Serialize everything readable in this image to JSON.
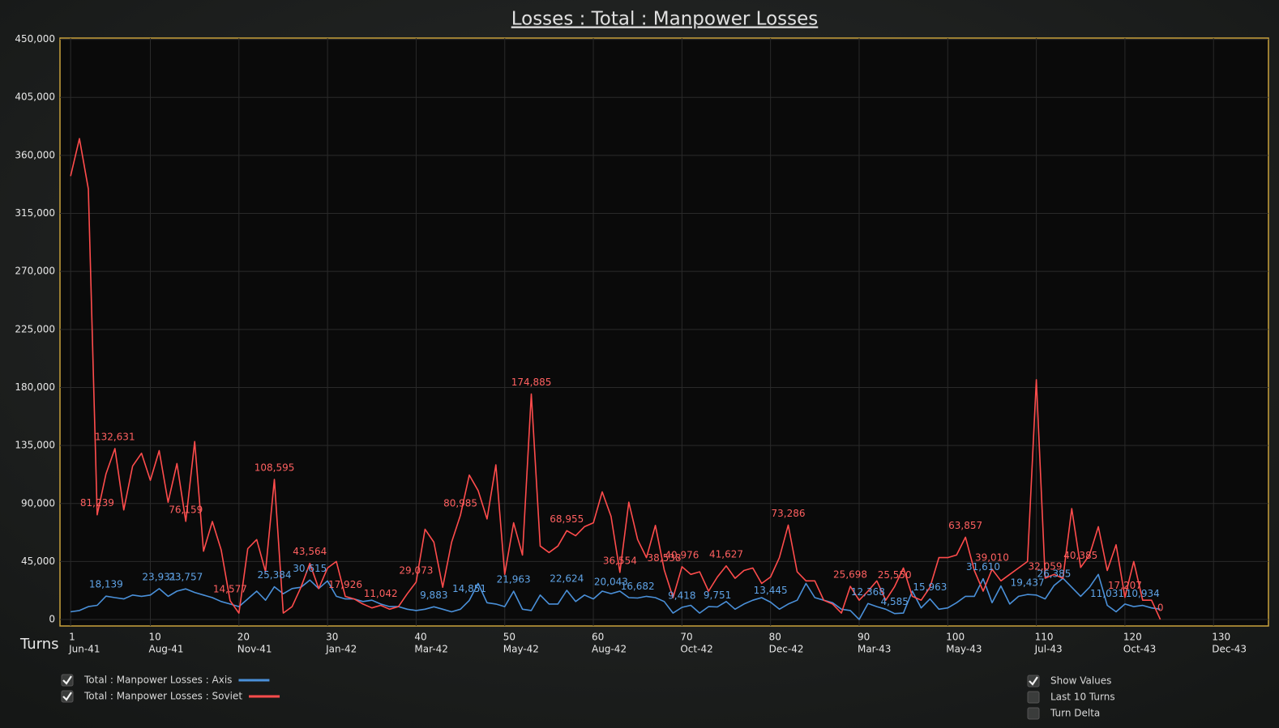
{
  "chart_data": {
    "type": "line",
    "title": "Losses : Total : Manpower Losses",
    "x_label": "Turns",
    "x": [
      1,
      2,
      3,
      4,
      5,
      6,
      7,
      8,
      9,
      10,
      11,
      12,
      13,
      14,
      15,
      16,
      17,
      18,
      19,
      20,
      21,
      22,
      23,
      24,
      25,
      26,
      27,
      28,
      29,
      30,
      31,
      32,
      33,
      34,
      35,
      36,
      37,
      38,
      39,
      40,
      41,
      42,
      43,
      44,
      45,
      46,
      47,
      48,
      49,
      50,
      51,
      52,
      53,
      54,
      55,
      56,
      57,
      58,
      59,
      60,
      61,
      62,
      63,
      64,
      65,
      66,
      67,
      68,
      69,
      70,
      71,
      72,
      73,
      74,
      75,
      76,
      77,
      78,
      79,
      80,
      81,
      82,
      83,
      84,
      85,
      86,
      87,
      88,
      89,
      90,
      91,
      92,
      93,
      94,
      95,
      96,
      97,
      98,
      99,
      100,
      101,
      102,
      103,
      104,
      105,
      106,
      107,
      108,
      109,
      110,
      111,
      112,
      113,
      114,
      115,
      116,
      117,
      118,
      119,
      120,
      121,
      122,
      123,
      124
    ],
    "xlim": [
      -0.2,
      136.2
    ],
    "xticks": [
      1,
      10,
      20,
      30,
      40,
      50,
      60,
      70,
      80,
      90,
      100,
      110,
      120,
      130
    ],
    "xtick_dates": [
      "Jun-41",
      "Aug-41",
      "Nov-41",
      "Jan-42",
      "Mar-42",
      "May-42",
      "Aug-42",
      "Oct-42",
      "Dec-42",
      "Mar-43",
      "May-43",
      "Jul-43",
      "Oct-43",
      "Dec-43"
    ],
    "ylim": [
      -5000,
      451000
    ],
    "yticks": [
      0,
      {
        "value": 45000,
        "label": "45,000"
      },
      {
        "value": 90000,
        "label": "90,000"
      },
      {
        "value": 135000,
        "label": "135,000"
      },
      {
        "value": 180000,
        "label": "180,000"
      },
      {
        "value": 225000,
        "label": "225,000"
      },
      {
        "value": 270000,
        "label": "270,000"
      },
      {
        "value": 315000,
        "label": "315,000"
      },
      {
        "value": 360000,
        "label": "360,000"
      },
      {
        "value": 405000,
        "label": "405,000"
      },
      {
        "value": 450000,
        "label": "450,000"
      }
    ],
    "grid": true,
    "series": [
      {
        "name": "Total : Manpower Losses : Axis",
        "color": "#4a90d9",
        "label_color": "#5fa3e6",
        "values": [
          6000,
          7000,
          10000,
          11000,
          18139,
          17000,
          16000,
          19000,
          18000,
          19000,
          23931,
          18000,
          22000,
          23757,
          21000,
          19000,
          17000,
          14000,
          12000,
          10000,
          16000,
          22000,
          15000,
          25384,
          20000,
          24000,
          25000,
          30615,
          24000,
          30000,
          18000,
          16000,
          16000,
          14000,
          15000,
          12000,
          10000,
          10000,
          8000,
          7000,
          8000,
          9883,
          8000,
          6000,
          8000,
          14851,
          28000,
          13000,
          12000,
          10000,
          21963,
          8000,
          7000,
          19000,
          12000,
          12000,
          22624,
          14000,
          19000,
          16000,
          22000,
          20043,
          22000,
          17000,
          16682,
          18000,
          17000,
          14000,
          5000,
          9418,
          11000,
          5000,
          10000,
          9751,
          14000,
          8000,
          12000,
          15000,
          17000,
          13445,
          8000,
          12000,
          15000,
          28000,
          17000,
          15000,
          13000,
          8000,
          7000,
          0,
          12368,
          10000,
          8000,
          4585,
          5000,
          22000,
          9000,
          15963,
          8000,
          9000,
          13000,
          18000,
          18000,
          31610,
          13000,
          26000,
          12000,
          18000,
          19437,
          19000,
          16000,
          26385,
          32000,
          25000,
          18000,
          25000,
          35000,
          11031,
          6000,
          12000,
          10000,
          10934,
          9000,
          8000
        ],
        "value_labels": [
          null,
          null,
          null,
          null,
          "18,139",
          null,
          null,
          null,
          null,
          null,
          "23,931",
          null,
          null,
          "23,757",
          null,
          null,
          null,
          null,
          null,
          null,
          null,
          null,
          null,
          "25,384",
          null,
          null,
          null,
          "30,615",
          null,
          null,
          null,
          null,
          null,
          null,
          null,
          null,
          null,
          null,
          null,
          null,
          null,
          "9,883",
          null,
          null,
          null,
          "14,851",
          null,
          null,
          null,
          null,
          "21,963",
          null,
          null,
          null,
          null,
          null,
          "22,624",
          null,
          null,
          null,
          null,
          "20,043",
          null,
          null,
          "16,682",
          null,
          null,
          null,
          null,
          "9,418",
          null,
          null,
          null,
          "9,751",
          null,
          null,
          null,
          null,
          null,
          "13,445",
          null,
          null,
          null,
          null,
          null,
          null,
          null,
          null,
          null,
          null,
          "12,368",
          null,
          null,
          "4,585",
          null,
          null,
          null,
          "15,963",
          null,
          null,
          null,
          null,
          null,
          "31,610",
          null,
          null,
          null,
          null,
          "19,437",
          null,
          null,
          "26,385",
          null,
          null,
          null,
          null,
          null,
          "11,031",
          null,
          null,
          null,
          "10,934",
          null,
          null
        ]
      },
      {
        "name": "Total : Manpower Losses : Soviet",
        "color": "#ff4c4c",
        "label_color": "#ff6060",
        "values": [
          344000,
          373000,
          334000,
          81239,
          113000,
          132631,
          85000,
          119000,
          129000,
          108000,
          131000,
          91000,
          121000,
          76159,
          138000,
          53000,
          76000,
          54000,
          14577,
          5000,
          55000,
          62000,
          37000,
          108595,
          5000,
          10000,
          25000,
          43564,
          24000,
          40000,
          45000,
          17926,
          16000,
          12000,
          9000,
          11042,
          8000,
          10000,
          20000,
          29073,
          70000,
          60000,
          25000,
          60000,
          80985,
          112000,
          100000,
          78000,
          120000,
          35000,
          75000,
          50000,
          174885,
          57000,
          52000,
          57000,
          68955,
          65000,
          72000,
          75000,
          99000,
          80000,
          36554,
          91000,
          62000,
          48000,
          73000,
          38538,
          17000,
          40976,
          35000,
          37000,
          22000,
          33000,
          41627,
          32000,
          38000,
          40000,
          28000,
          33000,
          48000,
          73286,
          37000,
          30000,
          30000,
          15000,
          12000,
          5000,
          25698,
          15000,
          22000,
          30000,
          15000,
          25550,
          40000,
          18000,
          15000,
          25000,
          48000,
          48000,
          50000,
          63857,
          38000,
          22000,
          39010,
          30000,
          35000,
          40000,
          45000,
          186000,
          32059,
          35000,
          32000,
          86000,
          40385,
          50000,
          72000,
          38000,
          58000,
          17207,
          45000,
          15000,
          15000,
          0
        ],
        "value_labels": [
          null,
          null,
          null,
          "81,239",
          null,
          "132,631",
          null,
          null,
          null,
          null,
          null,
          null,
          null,
          "76,159",
          null,
          null,
          null,
          null,
          "14,577",
          null,
          null,
          null,
          null,
          "108,595",
          null,
          null,
          null,
          "43,564",
          null,
          null,
          null,
          "17,926",
          null,
          null,
          null,
          "11,042",
          null,
          null,
          null,
          "29,073",
          null,
          null,
          null,
          null,
          "80,985",
          null,
          null,
          null,
          null,
          null,
          null,
          null,
          "174,885",
          null,
          null,
          null,
          "68,955",
          null,
          null,
          null,
          null,
          null,
          "36,554",
          null,
          null,
          null,
          null,
          "38,538",
          null,
          "40,976",
          null,
          null,
          null,
          null,
          "41,627",
          null,
          null,
          null,
          null,
          null,
          null,
          "73,286",
          null,
          null,
          null,
          null,
          null,
          null,
          "25,698",
          null,
          null,
          null,
          null,
          "25,550",
          null,
          null,
          null,
          null,
          null,
          null,
          null,
          "63,857",
          null,
          null,
          "39,010",
          null,
          null,
          null,
          null,
          null,
          "32,059",
          null,
          null,
          null,
          "40,385",
          null,
          null,
          null,
          null,
          "17,207",
          null,
          null,
          null,
          "0"
        ]
      }
    ],
    "controls": [
      {
        "label": "Show Values",
        "checked": true
      },
      {
        "label": "Last 10 Turns",
        "checked": false
      },
      {
        "label": "Turn Delta",
        "checked": false
      }
    ]
  }
}
